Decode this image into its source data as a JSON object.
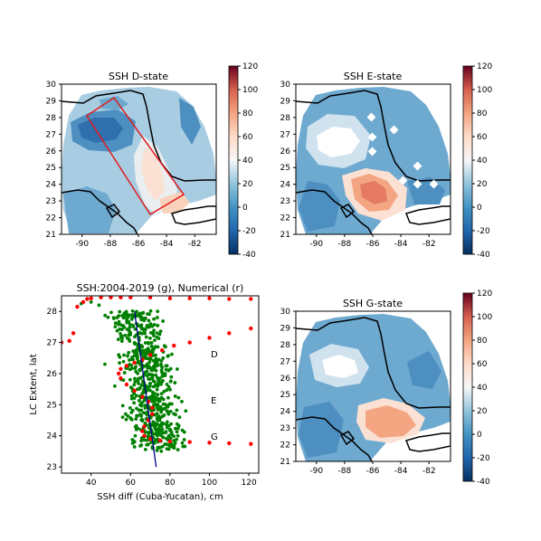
{
  "chart_data": [
    {
      "type": "heatmap",
      "title": "SSH D-state",
      "xlim": [
        -91.5,
        -80.5
      ],
      "ylim": [
        21,
        30
      ],
      "x_ticks": [
        "-90",
        "-88",
        "-86",
        "-84",
        "-82"
      ],
      "y_ticks": [
        "21",
        "22",
        "23",
        "24",
        "25",
        "26",
        "27",
        "28",
        "29",
        "30"
      ],
      "colorbar": {
        "ticks": [
          "-40",
          "-20",
          "0",
          "20",
          "40",
          "60",
          "80",
          "100",
          "120"
        ],
        "range": [
          -40,
          120
        ],
        "colormap": "RdBu_r"
      },
      "features": [
        {
          "kind": "low",
          "lon": -88.2,
          "lat": 26.8,
          "value": 0
        },
        {
          "kind": "high",
          "lon": -86.0,
          "lat": 24.5,
          "value": 55
        },
        {
          "kind": "high",
          "lon": -84.6,
          "lat": 22.2,
          "value": 20
        }
      ],
      "box_corners": [
        [
          -90.3,
          27.8
        ],
        [
          -88.2,
          28.9
        ],
        [
          -82.8,
          23.4
        ],
        [
          -85.0,
          22.2
        ]
      ]
    },
    {
      "type": "heatmap",
      "title": "SSH E-state",
      "xlim": [
        -91.5,
        -80.5
      ],
      "ylim": [
        21,
        30
      ],
      "x_ticks": [
        "-90",
        "-88",
        "-86",
        "-84",
        "-82"
      ],
      "y_ticks": [
        "21",
        "22",
        "23",
        "24",
        "25",
        "26",
        "27",
        "28",
        "29",
        "30"
      ],
      "colorbar": {
        "ticks": [
          "-40",
          "-20",
          "0",
          "20",
          "40",
          "60",
          "80",
          "100",
          "120"
        ],
        "range": [
          -40,
          120
        ],
        "colormap": "RdBu_r"
      },
      "features": [
        {
          "kind": "low",
          "lon": -88.0,
          "lat": 26.0,
          "value": 30
        },
        {
          "kind": "high",
          "lon": -85.0,
          "lat": 23.8,
          "value": 80
        }
      ]
    },
    {
      "type": "scatter",
      "title": "SSH:2004-2019 (g), Numerical (r)",
      "xlabel": "SSH diff (Cuba-Yucatan), cm",
      "ylabel": "LC Extent, lat",
      "xlim": [
        25,
        125
      ],
      "ylim": [
        22.8,
        28.5
      ],
      "x_ticks": [
        "40",
        "60",
        "80",
        "100",
        "120"
      ],
      "y_ticks": [
        "23",
        "24",
        "25",
        "26",
        "27",
        "28"
      ],
      "annotations": [
        {
          "text": "D",
          "x": 96,
          "y": 26.8
        },
        {
          "text": "E",
          "x": 96,
          "y": 25.0
        },
        {
          "text": "G",
          "x": 96,
          "y": 24.05
        }
      ],
      "series": [
        {
          "color": "#008000",
          "marker": "circle",
          "center_line": [
            [
              62,
              28.0
            ],
            [
              68,
              26.5
            ],
            [
              71,
              25.0
            ],
            [
              74,
              23.5
            ]
          ],
          "spread_cm": 6
        },
        {
          "color": "#ff0000",
          "marker": "circle",
          "points": [
            [
              25,
              27.0
            ],
            [
              29,
              27.05
            ],
            [
              31,
              27.3
            ],
            [
              33,
              28.15
            ],
            [
              36,
              28.3
            ],
            [
              38,
              28.4
            ],
            [
              40,
              28.42
            ],
            [
              45,
              28.45
            ],
            [
              50,
              28.45
            ],
            [
              55,
              28.45
            ],
            [
              60,
              28.45
            ],
            [
              70,
              28.45
            ],
            [
              80,
              28.42
            ],
            [
              90,
              28.42
            ],
            [
              100,
              28.42
            ],
            [
              110,
              28.4
            ],
            [
              121,
              28.4
            ],
            [
              121,
              27.45
            ],
            [
              110,
              27.3
            ],
            [
              100,
              27.15
            ],
            [
              90,
              27.0
            ],
            [
              82,
              26.9
            ],
            [
              76,
              26.75
            ],
            [
              70,
              26.6
            ],
            [
              66,
              26.45
            ],
            [
              62,
              26.35
            ],
            [
              58,
              26.25
            ],
            [
              55,
              26.15
            ],
            [
              54,
              26.0
            ],
            [
              55,
              25.85
            ],
            [
              58,
              25.65
            ],
            [
              62,
              25.45
            ],
            [
              66,
              25.25
            ],
            [
              69,
              25.1
            ],
            [
              71,
              24.9
            ],
            [
              71,
              24.7
            ],
            [
              69,
              24.5
            ],
            [
              67,
              24.3
            ],
            [
              66,
              24.15
            ],
            [
              67,
              24.0
            ],
            [
              70,
              23.9
            ],
            [
              75,
              23.85
            ],
            [
              80,
              23.82
            ],
            [
              90,
              23.8
            ],
            [
              100,
              23.78
            ],
            [
              110,
              23.76
            ],
            [
              121,
              23.74
            ]
          ]
        },
        {
          "color": "#00008b",
          "marker": "line",
          "points": [
            [
              62,
              28.0
            ],
            [
              73,
              23.0
            ]
          ]
        }
      ]
    },
    {
      "type": "heatmap",
      "title": "SSH G-state",
      "xlim": [
        -91.5,
        -80.5
      ],
      "ylim": [
        21,
        30
      ],
      "x_ticks": [
        "-90",
        "-88",
        "-86",
        "-84",
        "-82"
      ],
      "y_ticks": [
        "21",
        "22",
        "23",
        "24",
        "25",
        "26",
        "27",
        "28",
        "29",
        "30"
      ],
      "colorbar": {
        "ticks": [
          "-40",
          "-20",
          "0",
          "20",
          "40",
          "60",
          "80",
          "100",
          "120"
        ],
        "range": [
          -40,
          120
        ],
        "colormap": "RdBu_r"
      },
      "features": [
        {
          "kind": "low",
          "lon": -87.5,
          "lat": 26.0,
          "value": 30
        },
        {
          "kind": "high",
          "lon": -84.0,
          "lat": 22.7,
          "value": 60
        }
      ]
    }
  ]
}
